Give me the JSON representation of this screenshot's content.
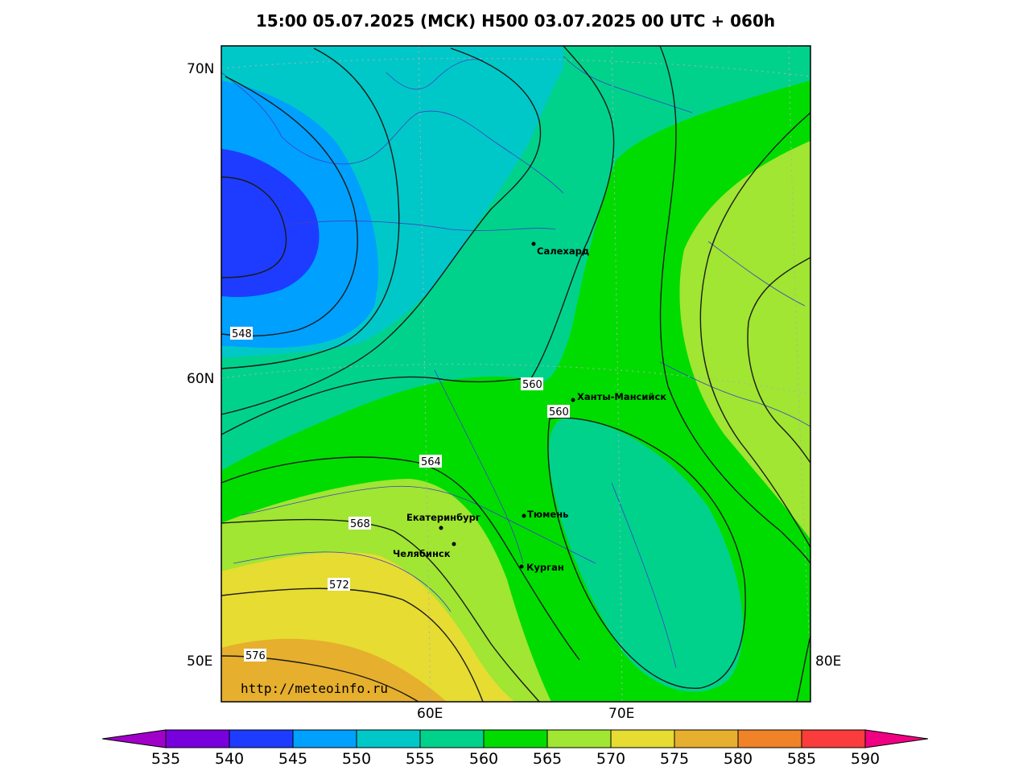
{
  "title": "15:00 05.07.2025 (МСК) H500  03.07.2025 00 UTC + 060h",
  "axes": {
    "lat_labels": [
      "70N",
      "60N",
      "50E"
    ],
    "lon_labels": [
      "60E",
      "70E",
      "80E"
    ]
  },
  "cities": [
    {
      "name": "Салехард"
    },
    {
      "name": "Ханты-Мансийск"
    },
    {
      "name": "Екатеринбург"
    },
    {
      "name": "Тюмень"
    },
    {
      "name": "Челябинск"
    },
    {
      "name": "Курган"
    }
  ],
  "contour_labels": [
    "548",
    "560",
    "560",
    "564",
    "568",
    "572",
    "576"
  ],
  "credit": "http://meteoinfo.ru",
  "colorbar": {
    "labels": [
      "535",
      "540",
      "545",
      "550",
      "555",
      "560",
      "565",
      "570",
      "575",
      "580",
      "585",
      "590"
    ],
    "colors": [
      "#a000c8",
      "#7800dc",
      "#1e3cff",
      "#00a0ff",
      "#00c8c8",
      "#00d28c",
      "#00dc00",
      "#a0e632",
      "#e6dc32",
      "#e6af2d",
      "#f08228",
      "#fa3c3c",
      "#f00082"
    ]
  }
}
